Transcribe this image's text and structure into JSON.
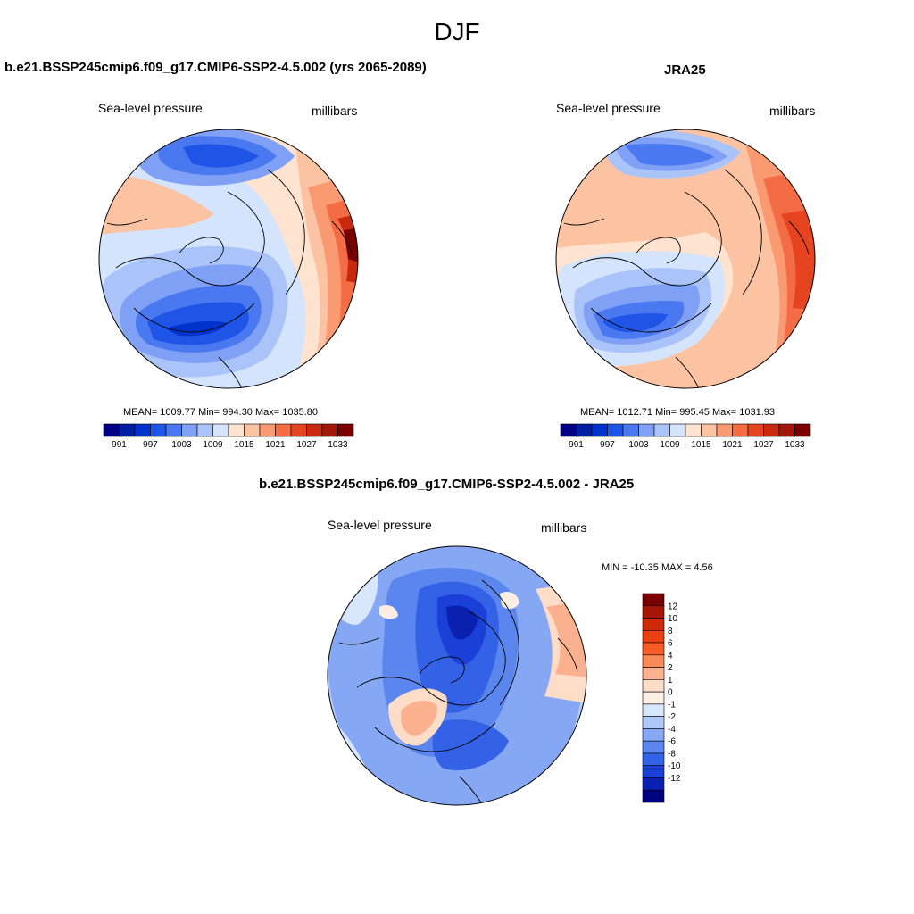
{
  "figure": {
    "season": "DJF",
    "panels": [
      {
        "id": "model",
        "title": "b.e21.BSSP245cmip6.f09_g17.CMIP6-SSP2-4.5.002 (yrs 2065-2089)",
        "left_label": "Sea-level pressure",
        "right_label": "millibars",
        "stats": "MEAN= 1009.77  Min= 994.30  Max= 1035.80",
        "colorbar_labels": [
          "991",
          "997",
          "1003",
          "1009",
          "1015",
          "1021",
          "1027",
          "1033"
        ]
      },
      {
        "id": "obs",
        "title": "JRA25",
        "left_label": "Sea-level pressure",
        "right_label": "millibars",
        "stats": "MEAN= 1012.71  Min= 995.45  Max= 1031.93",
        "colorbar_labels": [
          "991",
          "997",
          "1003",
          "1009",
          "1015",
          "1021",
          "1027",
          "1033"
        ]
      },
      {
        "id": "diff",
        "title": "b.e21.BSSP245cmip6.f09_g17.CMIP6-SSP2-4.5.002 - JRA25",
        "left_label": "Sea-level pressure",
        "right_label": "millibars",
        "stats": "MIN = -10.35 MAX =   4.56",
        "colorbar_labels": [
          "12",
          "10",
          "8",
          "6",
          "4",
          "2",
          "1",
          "0",
          "-1",
          "-2",
          "-4",
          "-6",
          "-8",
          "-10",
          "-12"
        ]
      }
    ],
    "colors": {
      "abs_scale": [
        "#000080",
        "#0020a0",
        "#0033cc",
        "#1f55e6",
        "#4a78f0",
        "#7fa0f5",
        "#aac4fa",
        "#d4e4fc",
        "#fde3d0",
        "#fcc3a3",
        "#f99a72",
        "#f46c45",
        "#e64420",
        "#c8280d",
        "#a01808",
        "#7a0000"
      ],
      "diff_scale": [
        "#7a0000",
        "#a51608",
        "#cc2a08",
        "#e84010",
        "#fa5c28",
        "#fb8a58",
        "#fbb090",
        "#fddcc8",
        "#fdeee3",
        "#d8e6fb",
        "#b0c8f8",
        "#86a8f4",
        "#5a86ee",
        "#3462e6",
        "#1a40d8",
        "#0a20b0",
        "#000080"
      ]
    }
  }
}
